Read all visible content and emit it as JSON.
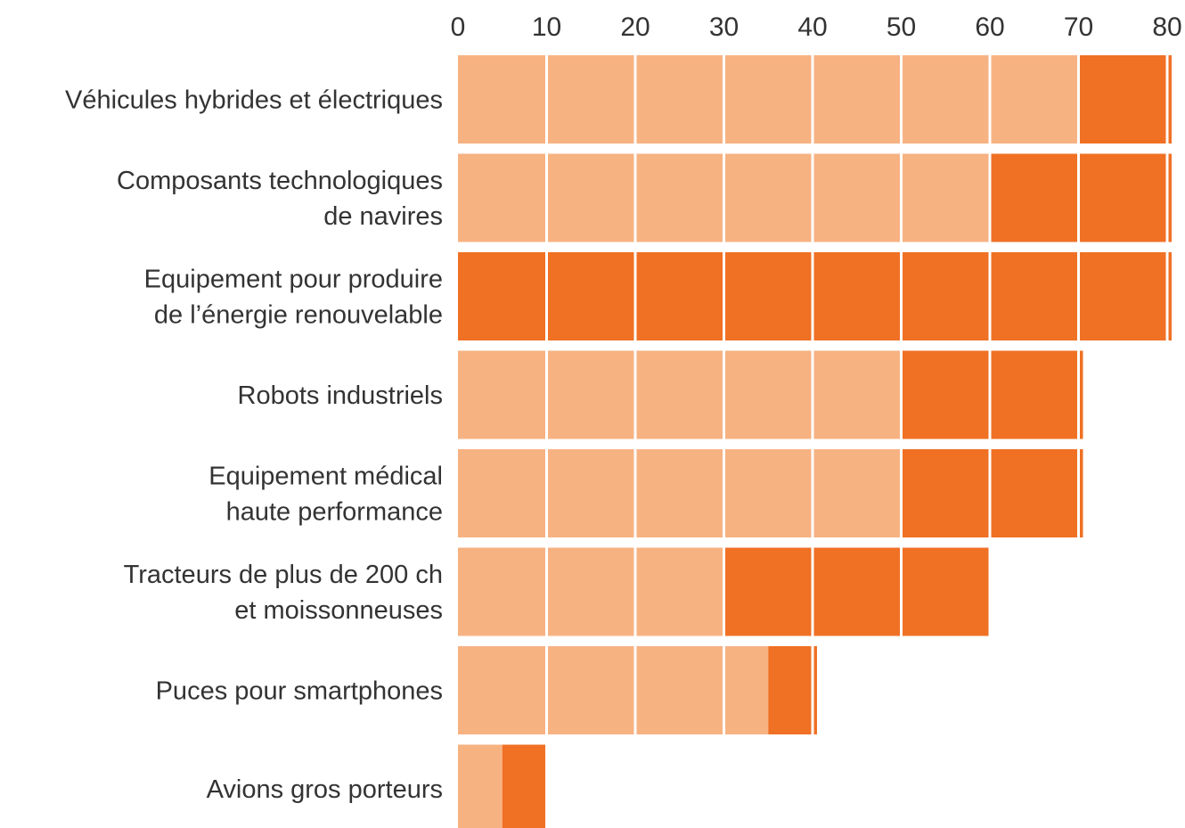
{
  "chart_data": {
    "type": "bar",
    "orientation": "horizontal",
    "stacked": true,
    "title": "",
    "xlabel": "",
    "ylabel": "",
    "xlim": [
      0,
      80
    ],
    "x_ticks": [
      0,
      10,
      20,
      30,
      40,
      50,
      60,
      70,
      80
    ],
    "grid": true,
    "legend": "none",
    "categories": [
      [
        "Véhicules hybrides et électriques"
      ],
      [
        "Composants technologiques",
        "de navires"
      ],
      [
        "Equipement pour produire",
        "de l’énergie renouvelable"
      ],
      [
        "Robots industriels"
      ],
      [
        "Equipement médical",
        "haute performance"
      ],
      [
        "Tracteurs de plus de 200 ch",
        "et moissonneuses"
      ],
      [
        "Puces pour smartphones"
      ],
      [
        "Avions gros porteurs"
      ]
    ],
    "series": [
      {
        "color": "#F7B282",
        "values": [
          70,
          60,
          0,
          50,
          50,
          30,
          35,
          5
        ]
      },
      {
        "color": "#F07024",
        "values": [
          10.5,
          20.5,
          80.5,
          20.5,
          20.5,
          30,
          5.5,
          5
        ]
      }
    ],
    "colors": {
      "light": "#F7B282",
      "dark": "#F07024",
      "divider": "#ffffff",
      "text": "#333333"
    }
  }
}
